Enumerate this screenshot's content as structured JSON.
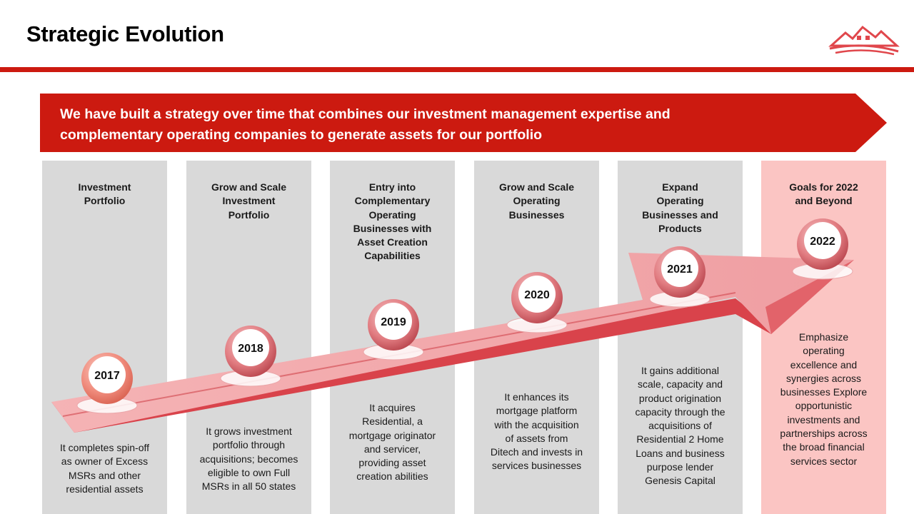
{
  "title": "Strategic Evolution",
  "banner": {
    "line1": "We have built a strategy over time that combines our investment management expertise and",
    "line2": "complementary operating companies to generate assets for our portfolio"
  },
  "colors": {
    "brand_red": "#cc1a10",
    "column_gray": "#d9d9d9",
    "column_pink": "#fbc5c3",
    "arrow_pink": "#f0a6a8"
  },
  "icons": {
    "logo": "house-roof-logo-icon"
  },
  "stages": [
    {
      "year": "2017",
      "heading": [
        "Investment",
        "Portfolio"
      ],
      "description": [
        "It completes  spin-off",
        "as owner  of Excess",
        "MSRs  and other",
        "residential assets"
      ]
    },
    {
      "year": "2018",
      "heading": [
        "Grow and Scale",
        "Investment",
        "Portfolio"
      ],
      "description": [
        "It grows  investment",
        "portfolio through",
        "acquisitions;  becomes",
        "eligible  to own Full",
        "MSRs  in all 50 states"
      ]
    },
    {
      "year": "2019",
      "heading": [
        "Entry into",
        "Complementary",
        "Operating",
        "Businesses with",
        "Asset Creation",
        "Capabilities"
      ],
      "description": [
        "It acquires",
        "Residential, a",
        "mortgage  originator",
        "and  servicer,",
        "providing asset",
        "creation abilities"
      ]
    },
    {
      "year": "2020",
      "heading": [
        "Grow and Scale",
        "Operating",
        "Businesses"
      ],
      "description": [
        "It enhances its",
        "mortgage  platform",
        "with the  acquisition",
        "of  assets from",
        "Ditech and  invests in",
        "services  businesses"
      ]
    },
    {
      "year": "2021",
      "heading": [
        "Expand",
        "Operating",
        "Businesses and",
        "Products"
      ],
      "description": [
        "It gains  additional",
        "scale,  capacity and",
        "product  origination",
        "capacity through  the",
        "acquisitions  of",
        "Residential 2 Home",
        "Loans and  business",
        "purpose  lender",
        "Genesis  Capital"
      ]
    },
    {
      "year": "2022",
      "heading": [
        "Goals for 2022",
        "and Beyond"
      ],
      "description": [
        "Emphasize",
        "operating",
        "excellence and",
        "synergies across",
        "businesses Explore",
        "opportunistic",
        "investments and",
        "partnerships  across",
        "the broad  financial",
        "services  sector"
      ]
    }
  ]
}
